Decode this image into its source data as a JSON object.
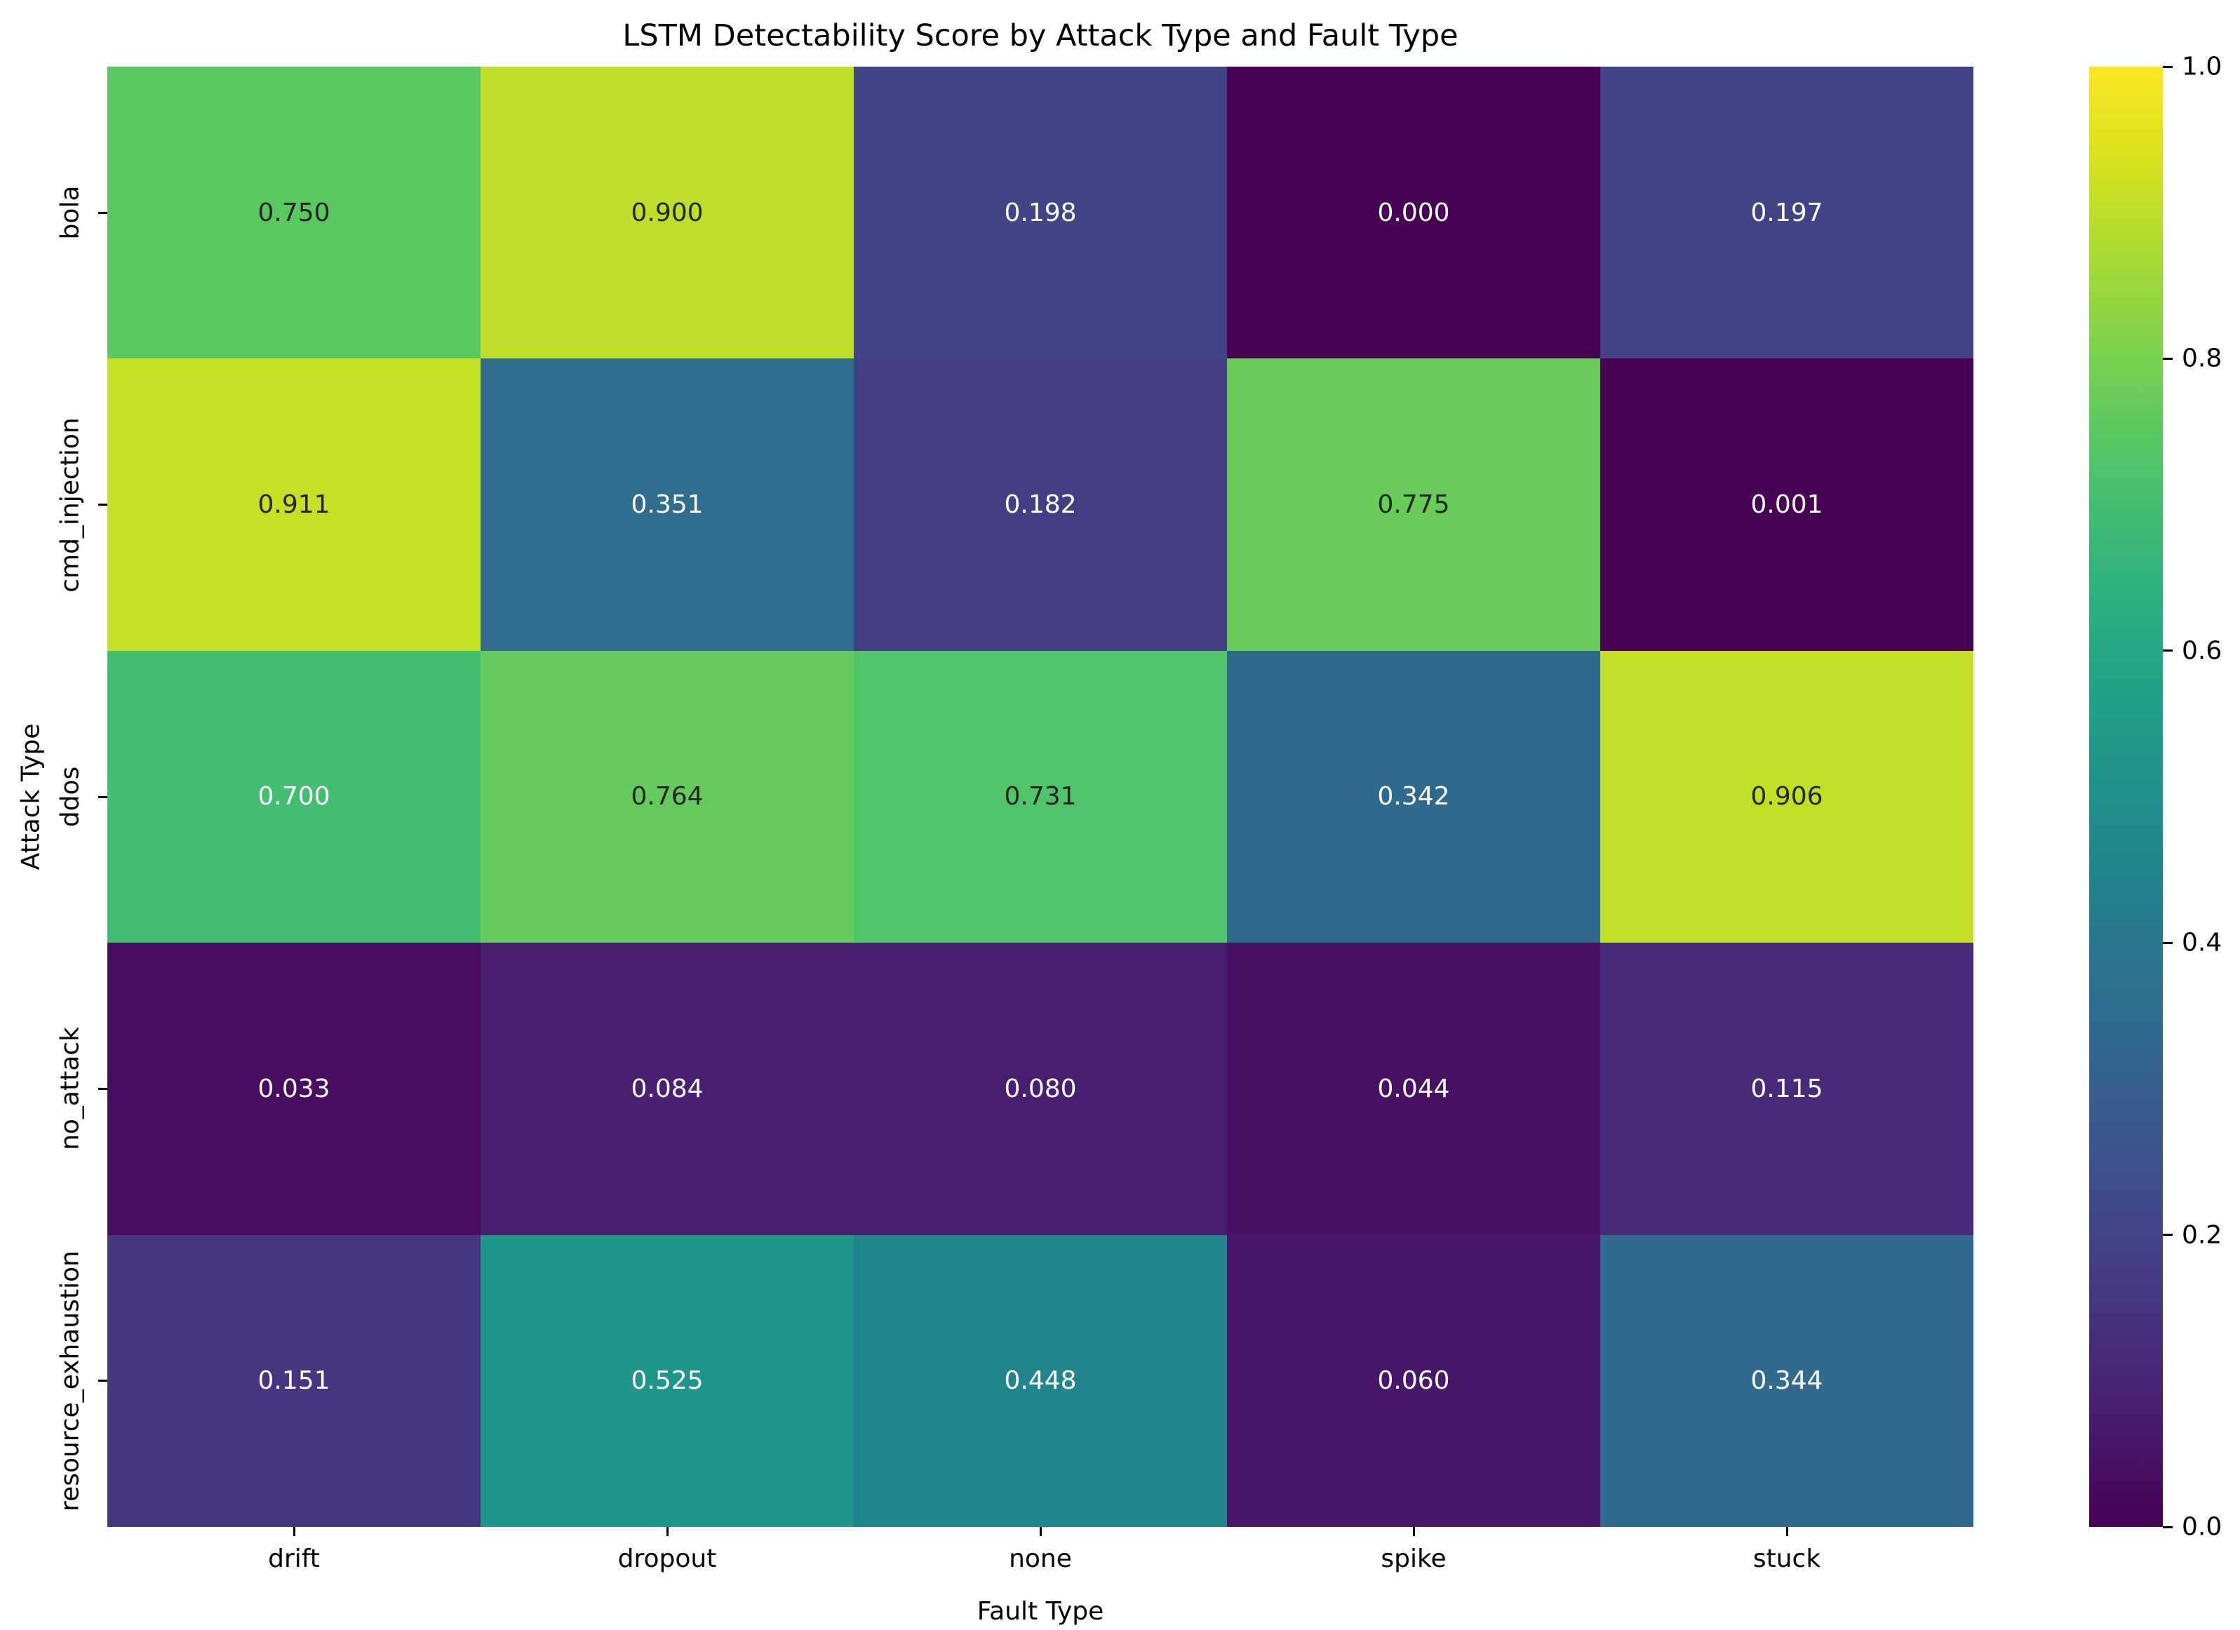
{
  "chart_data": {
    "type": "heatmap",
    "title": "LSTM Detectability Score by Attack Type and Fault Type",
    "xlabel": "Fault Type",
    "ylabel": "Attack Type",
    "x_categories": [
      "drift",
      "dropout",
      "none",
      "spike",
      "stuck"
    ],
    "y_categories": [
      "bola",
      "cmd_injection",
      "ddos",
      "no_attack",
      "resource_exhaustion"
    ],
    "values": [
      [
        0.75,
        0.9,
        0.198,
        0.0,
        0.197
      ],
      [
        0.911,
        0.351,
        0.182,
        0.775,
        0.001
      ],
      [
        0.7,
        0.764,
        0.731,
        0.342,
        0.906
      ],
      [
        0.033,
        0.084,
        0.08,
        0.044,
        0.115
      ],
      [
        0.151,
        0.525,
        0.448,
        0.06,
        0.344
      ]
    ],
    "value_decimals": 3,
    "colormap": "viridis",
    "vmin": 0.0,
    "vmax": 1.0,
    "grid": false,
    "annotations": true,
    "colorbar": {
      "position": "right",
      "tick_labels": [
        "1.0",
        "0.8",
        "0.6",
        "0.4",
        "0.2",
        "0.0"
      ]
    },
    "colors": {
      "background": "#ffffff",
      "annotation_dark": "#262626",
      "annotation_light": "#ffffff",
      "axis_text": "#000000"
    }
  }
}
